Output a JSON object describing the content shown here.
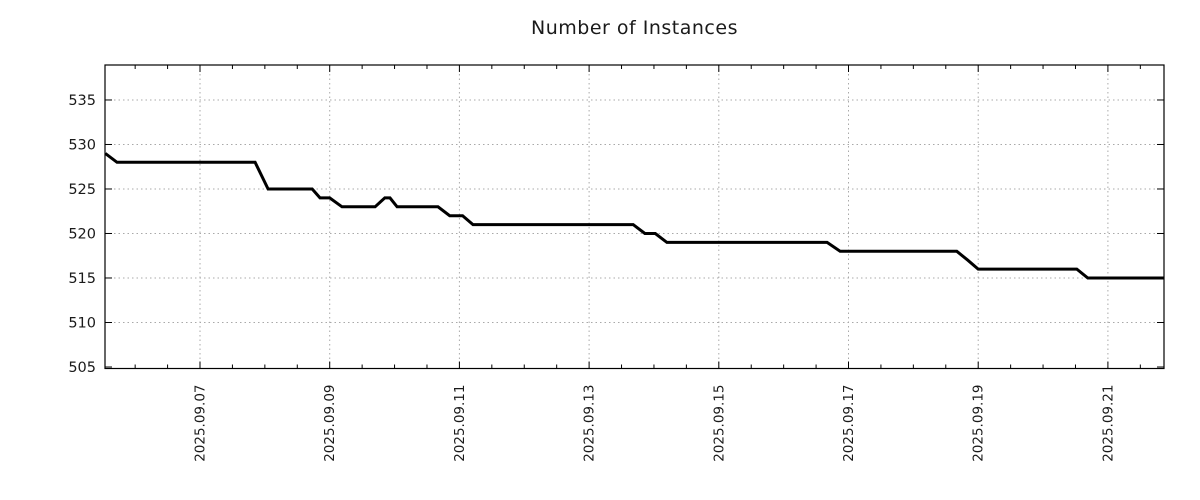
{
  "chart_data": {
    "type": "line",
    "title": "Number of Instances",
    "xlabel": "",
    "ylabel": "",
    "grid": true,
    "legend": "none",
    "y_ticks": [
      505,
      510,
      515,
      520,
      525,
      530,
      535
    ],
    "y_range": [
      504.83,
      538.93
    ],
    "x_tick_labels": [
      "2025.09.07",
      "2025.09.09",
      "2025.09.11",
      "2025.09.13",
      "2025.09.15",
      "2025.09.17",
      "2025.09.19",
      "2025.09.21"
    ],
    "x_tick_days": [
      7,
      9,
      11,
      13,
      15,
      17,
      19,
      21
    ],
    "x_range_days": [
      5.535,
      21.865
    ],
    "minor_x_step_days": 0.5,
    "series": [
      {
        "name": "instances",
        "points": [
          [
            5.54,
            529
          ],
          [
            5.72,
            528
          ],
          [
            7.85,
            528
          ],
          [
            8.05,
            525
          ],
          [
            8.73,
            525
          ],
          [
            8.85,
            524
          ],
          [
            9.0,
            524
          ],
          [
            9.19,
            523
          ],
          [
            9.7,
            523
          ],
          [
            9.85,
            524
          ],
          [
            9.93,
            524
          ],
          [
            10.04,
            523
          ],
          [
            10.67,
            523
          ],
          [
            10.85,
            522
          ],
          [
            11.05,
            522
          ],
          [
            11.21,
            521
          ],
          [
            13.68,
            521
          ],
          [
            13.86,
            520
          ],
          [
            14.02,
            520
          ],
          [
            14.2,
            519
          ],
          [
            16.67,
            519
          ],
          [
            16.87,
            518
          ],
          [
            18.67,
            518
          ],
          [
            18.84,
            517
          ],
          [
            19.0,
            516
          ],
          [
            20.52,
            516
          ],
          [
            20.69,
            515
          ],
          [
            21.87,
            515
          ]
        ]
      }
    ],
    "colors": {
      "line": "#000000",
      "grid": "#a9a9a9",
      "axis": "#000000",
      "text": "#1a1a1a",
      "background": "#ffffff"
    }
  }
}
